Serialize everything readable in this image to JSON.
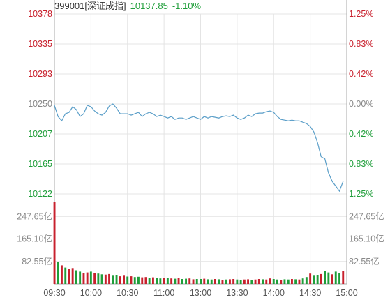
{
  "header": {
    "name": "399001[深证成指]",
    "price": "10137.85",
    "change_pct": "-1.10%"
  },
  "colors": {
    "up": "#c8202d",
    "down": "#1f9e3a",
    "flat": "#888888",
    "line": "#5a9ec8",
    "grid": "#e4e4e4",
    "axis": "#a8a8a8"
  },
  "chart_data": {
    "type": "line",
    "base_value": 10250,
    "y_labels_left": [
      "10378",
      "10335",
      "10293",
      "10250",
      "10207",
      "10165",
      "10122"
    ],
    "y_labels_right": [
      "1.25%",
      "0.83%",
      "0.42%",
      "0.00%",
      "0.42%",
      "0.83%",
      "1.25%"
    ],
    "ylim": [
      10122,
      10378
    ],
    "volume_labels_left": [
      "247.65亿",
      "165.10亿",
      "82.55亿"
    ],
    "volume_labels_right": [
      "247.65亿",
      "165.10亿",
      "82.55亿"
    ],
    "volume_ylim": [
      0,
      330.2
    ],
    "x_ticks": [
      "09:30",
      "10:00",
      "10:30",
      "11:00",
      "13:00",
      "13:30",
      "14:00",
      "14:30",
      "15:00"
    ],
    "series": [
      {
        "values": [
          10248,
          10232,
          10226,
          10236,
          10238,
          10246,
          10242,
          10232,
          10236,
          10248,
          10246,
          10240,
          10236,
          10234,
          10238,
          10247,
          10250,
          10244,
          10236,
          10236,
          10236,
          10234,
          10236,
          10238,
          10232,
          10236,
          10238,
          10236,
          10232,
          10234,
          10232,
          10230,
          10232,
          10228,
          10230,
          10230,
          10228,
          10230,
          10232,
          10230,
          10228,
          10232,
          10230,
          10232,
          10231,
          10230,
          10232,
          10233,
          10232,
          10234,
          10230,
          10228,
          10230,
          10234,
          10232,
          10236,
          10237,
          10237,
          10239,
          10240,
          10238,
          10232,
          10228,
          10227,
          10226,
          10227,
          10226,
          10226,
          10224,
          10222,
          10218,
          10210,
          10195,
          10175,
          10172,
          10152,
          10140,
          10133,
          10126,
          10140
        ]
      }
    ],
    "volume": [
      300,
      82,
      68,
      60,
      55,
      58,
      50,
      45,
      40,
      42,
      45,
      40,
      38,
      35,
      34,
      36,
      30,
      32,
      28,
      30,
      27,
      28,
      25,
      26,
      24,
      25,
      22,
      24,
      22,
      20,
      22,
      21,
      20,
      19,
      21,
      18,
      19,
      20,
      17,
      18,
      18,
      19,
      17,
      16,
      18,
      17,
      15,
      16,
      17,
      18,
      16,
      15,
      16,
      17,
      15,
      16,
      18,
      17,
      16,
      20,
      18,
      16,
      15,
      17,
      16,
      18,
      17,
      16,
      20,
      25,
      38,
      30,
      32,
      36,
      48,
      42,
      35,
      45,
      40,
      46
    ],
    "volume_dir": [
      "u",
      "d",
      "u",
      "d",
      "u",
      "u",
      "d",
      "d",
      "u",
      "u",
      "d",
      "u",
      "d",
      "d",
      "u",
      "u",
      "d",
      "d",
      "u",
      "u",
      "d",
      "u",
      "d",
      "d",
      "u",
      "u",
      "d",
      "u",
      "d",
      "d",
      "u",
      "d",
      "u",
      "d",
      "u",
      "d",
      "d",
      "u",
      "u",
      "d",
      "d",
      "u",
      "d",
      "d",
      "u",
      "d",
      "u",
      "d",
      "u",
      "u",
      "d",
      "d",
      "u",
      "u",
      "d",
      "u",
      "u",
      "d",
      "u",
      "u",
      "d",
      "d",
      "u",
      "d",
      "d",
      "u",
      "d",
      "u",
      "d",
      "d",
      "u",
      "d",
      "d",
      "u",
      "d",
      "d",
      "u",
      "d",
      "d",
      "u"
    ]
  }
}
